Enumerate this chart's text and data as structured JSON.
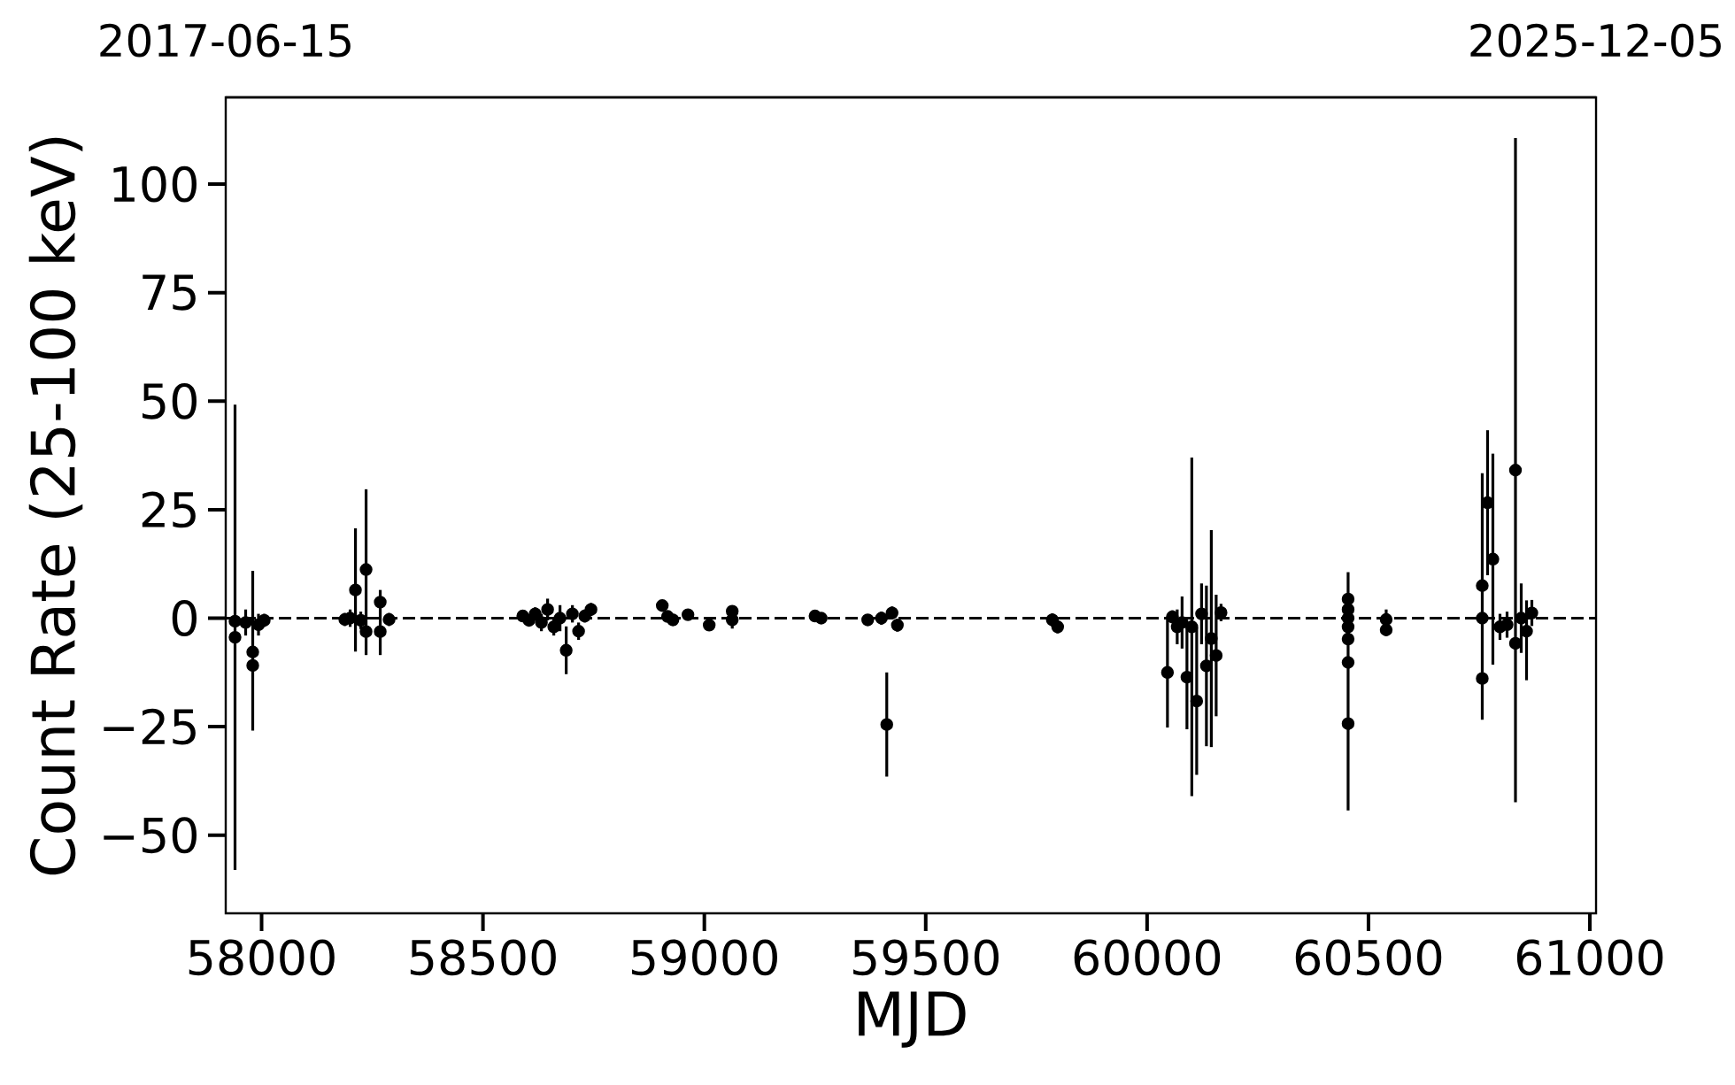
{
  "chart_data": {
    "type": "scatter",
    "xlabel": "MJD",
    "ylabel": "Count Rate (25-100 keV)",
    "x": [
      57940,
      57940,
      57964,
      57980,
      57980,
      57993,
      58006,
      58188,
      58200,
      58212,
      58224,
      58236,
      58236,
      58268,
      58268,
      58288,
      58590,
      58604,
      58618,
      58632,
      58646,
      58660,
      58674,
      58688,
      58702,
      58716,
      58730,
      58744,
      58905,
      58917,
      58929,
      58963,
      59011,
      59063,
      59063,
      59250,
      59264,
      59369,
      59400,
      59412,
      59424,
      59436,
      59786,
      59798,
      60046,
      60057,
      60068,
      60079,
      60090,
      60101,
      60112,
      60123,
      60134,
      60145,
      60156,
      60167,
      60454,
      60454,
      60454,
      60454,
      60454,
      60454,
      60454,
      60540,
      60540,
      60757,
      60757,
      60757,
      60769,
      60781,
      60797,
      60813,
      60832,
      60832,
      60845,
      60857,
      60869
    ],
    "values": [
      -0.7,
      -4.4,
      -1,
      -7.8,
      -10.9,
      -1.5,
      -0.5,
      -0.3,
      0,
      6.5,
      -0.5,
      11.2,
      -3.1,
      3.7,
      -3.1,
      -0.3,
      0.5,
      -0.5,
      1,
      -1,
      2,
      -2,
      0,
      -7.4,
      1,
      -3,
      0.5,
      2,
      2.9,
      0.4,
      -0.4,
      0.8,
      -1.6,
      1.6,
      -0.4,
      0.5,
      0,
      -0.4,
      0,
      -24.5,
      1.2,
      -1.6,
      -0.4,
      -2,
      -12.5,
      0.3,
      -2,
      -1,
      -13.6,
      -2,
      -19.1,
      1,
      -11,
      -4.7,
      -8.6,
      1.3,
      4.4,
      2,
      0,
      -2,
      -4.8,
      -10.2,
      -24.3,
      -0.3,
      -2.7,
      7.5,
      0,
      -13.9,
      26.6,
      13.6,
      -2,
      -1.5,
      34.1,
      -5.8,
      0,
      -3,
      1.2
    ],
    "errors": [
      null,
      53.6,
      3,
      [
        -25.9,
        10.9
      ],
      null,
      2.5,
      1.5,
      1.5,
      2,
      14.2,
      2,
      [
        -8.5,
        29.7
      ],
      null,
      [
        -8.5,
        6.5
      ],
      null,
      1.5,
      1,
      1,
      1.5,
      2,
      2.5,
      2,
      3,
      5.5,
      2,
      2,
      1.5,
      1.5,
      1,
      1,
      1,
      1,
      1,
      [
        -2.4,
        2.9
      ],
      null,
      0.8,
      0.8,
      1,
      1.5,
      12,
      1.5,
      1.5,
      1.5,
      1.5,
      12.7,
      1.5,
      4,
      6,
      12,
      39,
      17,
      7,
      18.5,
      25,
      14,
      2,
      null,
      null,
      null,
      null,
      null,
      null,
      [
        -44.3,
        10.6
      ],
      null,
      [
        -4.1,
        2
      ],
      [
        -23.4,
        33.4
      ],
      null,
      null,
      16.7,
      24.3,
      3,
      3,
      76.5,
      null,
      8,
      [
        -14.3,
        4.1
      ],
      3
    ],
    "color": "#000000",
    "marker": "circle",
    "xlim": [
      57919,
      61014
    ],
    "xticks": [
      58000,
      58500,
      59000,
      59500,
      60000,
      60500,
      61000
    ],
    "ylim": [
      -68,
      120
    ],
    "yticks": [
      {
        "value": -50,
        "label": "−50"
      },
      {
        "value": -25,
        "label": "−25"
      },
      0,
      25,
      50,
      75,
      100
    ],
    "x2lim": [
      "2017-06-15",
      "2025-12-05"
    ],
    "x2ticks": [
      "2017-06-15",
      "2025-12-05"
    ],
    "ref_lines": [
      {
        "axis": "y",
        "value": 0,
        "color": "#000000",
        "line_style": "dashed"
      }
    ]
  }
}
